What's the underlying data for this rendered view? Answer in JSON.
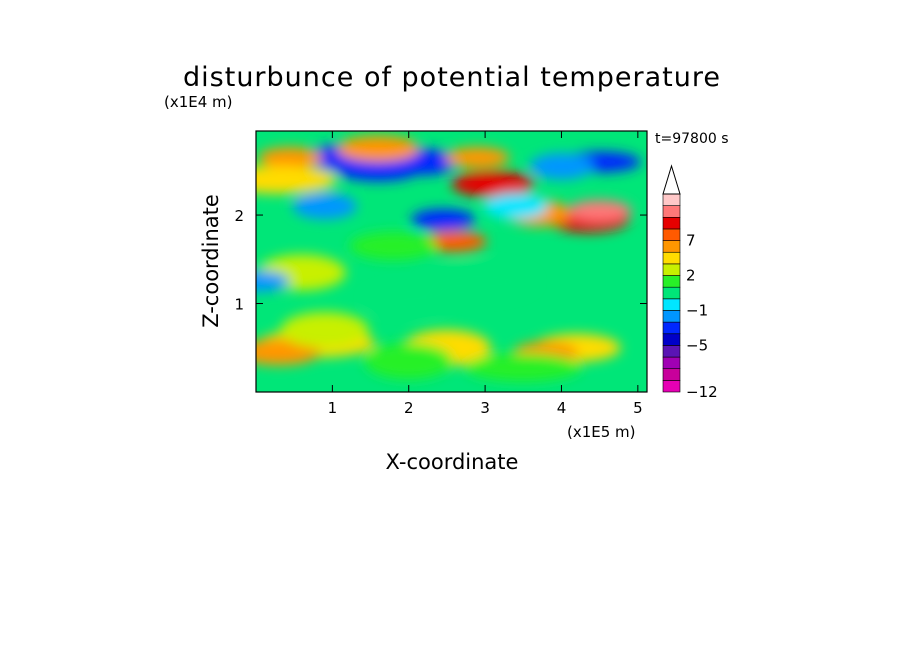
{
  "chart_data": {
    "type": "heatmap",
    "title": "disturbunce of potential temperature",
    "xlabel": "X-coordinate",
    "ylabel": "Z-coordinate",
    "x_unit": "(x1E5 m)",
    "y_unit": "(x1E4 m)",
    "time_label": "t=97800 s",
    "xlim": [
      0,
      5.12
    ],
    "ylim": [
      0,
      2.95
    ],
    "x_ticks": [
      1,
      2,
      3,
      4,
      5
    ],
    "y_ticks": [
      1,
      2
    ],
    "x_tick_labels": [
      "1",
      "2",
      "3",
      "4",
      "5"
    ],
    "y_tick_labels": [
      "1",
      "2"
    ],
    "colorbar": {
      "levels": [
        -12,
        -10,
        -8,
        -7,
        -5,
        -4,
        -3,
        -1,
        0,
        1,
        2,
        4,
        5,
        7,
        8,
        10
      ],
      "colors": [
        "#e600b4",
        "#c8009b",
        "#a000b4",
        "#5a14b4",
        "#0000c8",
        "#0028ff",
        "#0096ff",
        "#00e6ff",
        "#00e678",
        "#28f028",
        "#c8f000",
        "#ffdc00",
        "#ff9600",
        "#ff5a00",
        "#e60000",
        "#ff7878",
        "#ffc8c8"
      ],
      "labels": [
        "-12",
        "-5",
        "-1",
        "2",
        "7"
      ],
      "extend": "max"
    },
    "grid": false,
    "features": [
      {
        "x": 4.35,
        "z": 1.95,
        "value": 7
      },
      {
        "x": 4.5,
        "z": 2.05,
        "value": 8
      },
      {
        "x": 3.7,
        "z": 2.02,
        "value": 4
      },
      {
        "x": 4.5,
        "z": 2.6,
        "value": -5
      },
      {
        "x": 4.0,
        "z": 2.55,
        "value": -4
      },
      {
        "x": 2.6,
        "z": 1.7,
        "value": 5
      },
      {
        "x": 3.1,
        "z": 2.35,
        "value": 7
      },
      {
        "x": 2.45,
        "z": 1.95,
        "value": -5
      },
      {
        "x": 1.1,
        "z": 2.65,
        "value": -5
      },
      {
        "x": 1.6,
        "z": 2.5,
        "value": -5
      },
      {
        "x": 2.2,
        "z": 2.6,
        "value": -5
      },
      {
        "x": 0.45,
        "z": 2.65,
        "value": 4
      },
      {
        "x": 1.6,
        "z": 2.75,
        "value": 4
      },
      {
        "x": 2.9,
        "z": 2.65,
        "value": 4
      },
      {
        "x": 0.9,
        "z": 2.1,
        "value": -4
      },
      {
        "x": 0.3,
        "z": 2.4,
        "value": 2
      },
      {
        "x": 3.4,
        "z": 2.1,
        "value": -3
      },
      {
        "x": 1.8,
        "z": 1.65,
        "value": 0
      },
      {
        "x": 2.9,
        "z": 1.25,
        "value": -1
      },
      {
        "x": 2.0,
        "z": 1.05,
        "value": -1
      },
      {
        "x": 0.6,
        "z": 1.35,
        "value": 1
      },
      {
        "x": 0.8,
        "z": 0.55,
        "value": 2
      },
      {
        "x": 2.5,
        "z": 0.5,
        "value": 2
      },
      {
        "x": 4.2,
        "z": 0.5,
        "value": 2
      },
      {
        "x": 0.3,
        "z": 0.45,
        "value": 4
      },
      {
        "x": 3.8,
        "z": 0.45,
        "value": 4
      },
      {
        "x": 2.0,
        "z": 0.35,
        "value": 0
      },
      {
        "x": 3.5,
        "z": 0.28,
        "value": 0
      },
      {
        "x": 0.9,
        "z": 0.7,
        "value": 1
      },
      {
        "x": 0.02,
        "z": 1.25,
        "value": -4
      }
    ]
  }
}
